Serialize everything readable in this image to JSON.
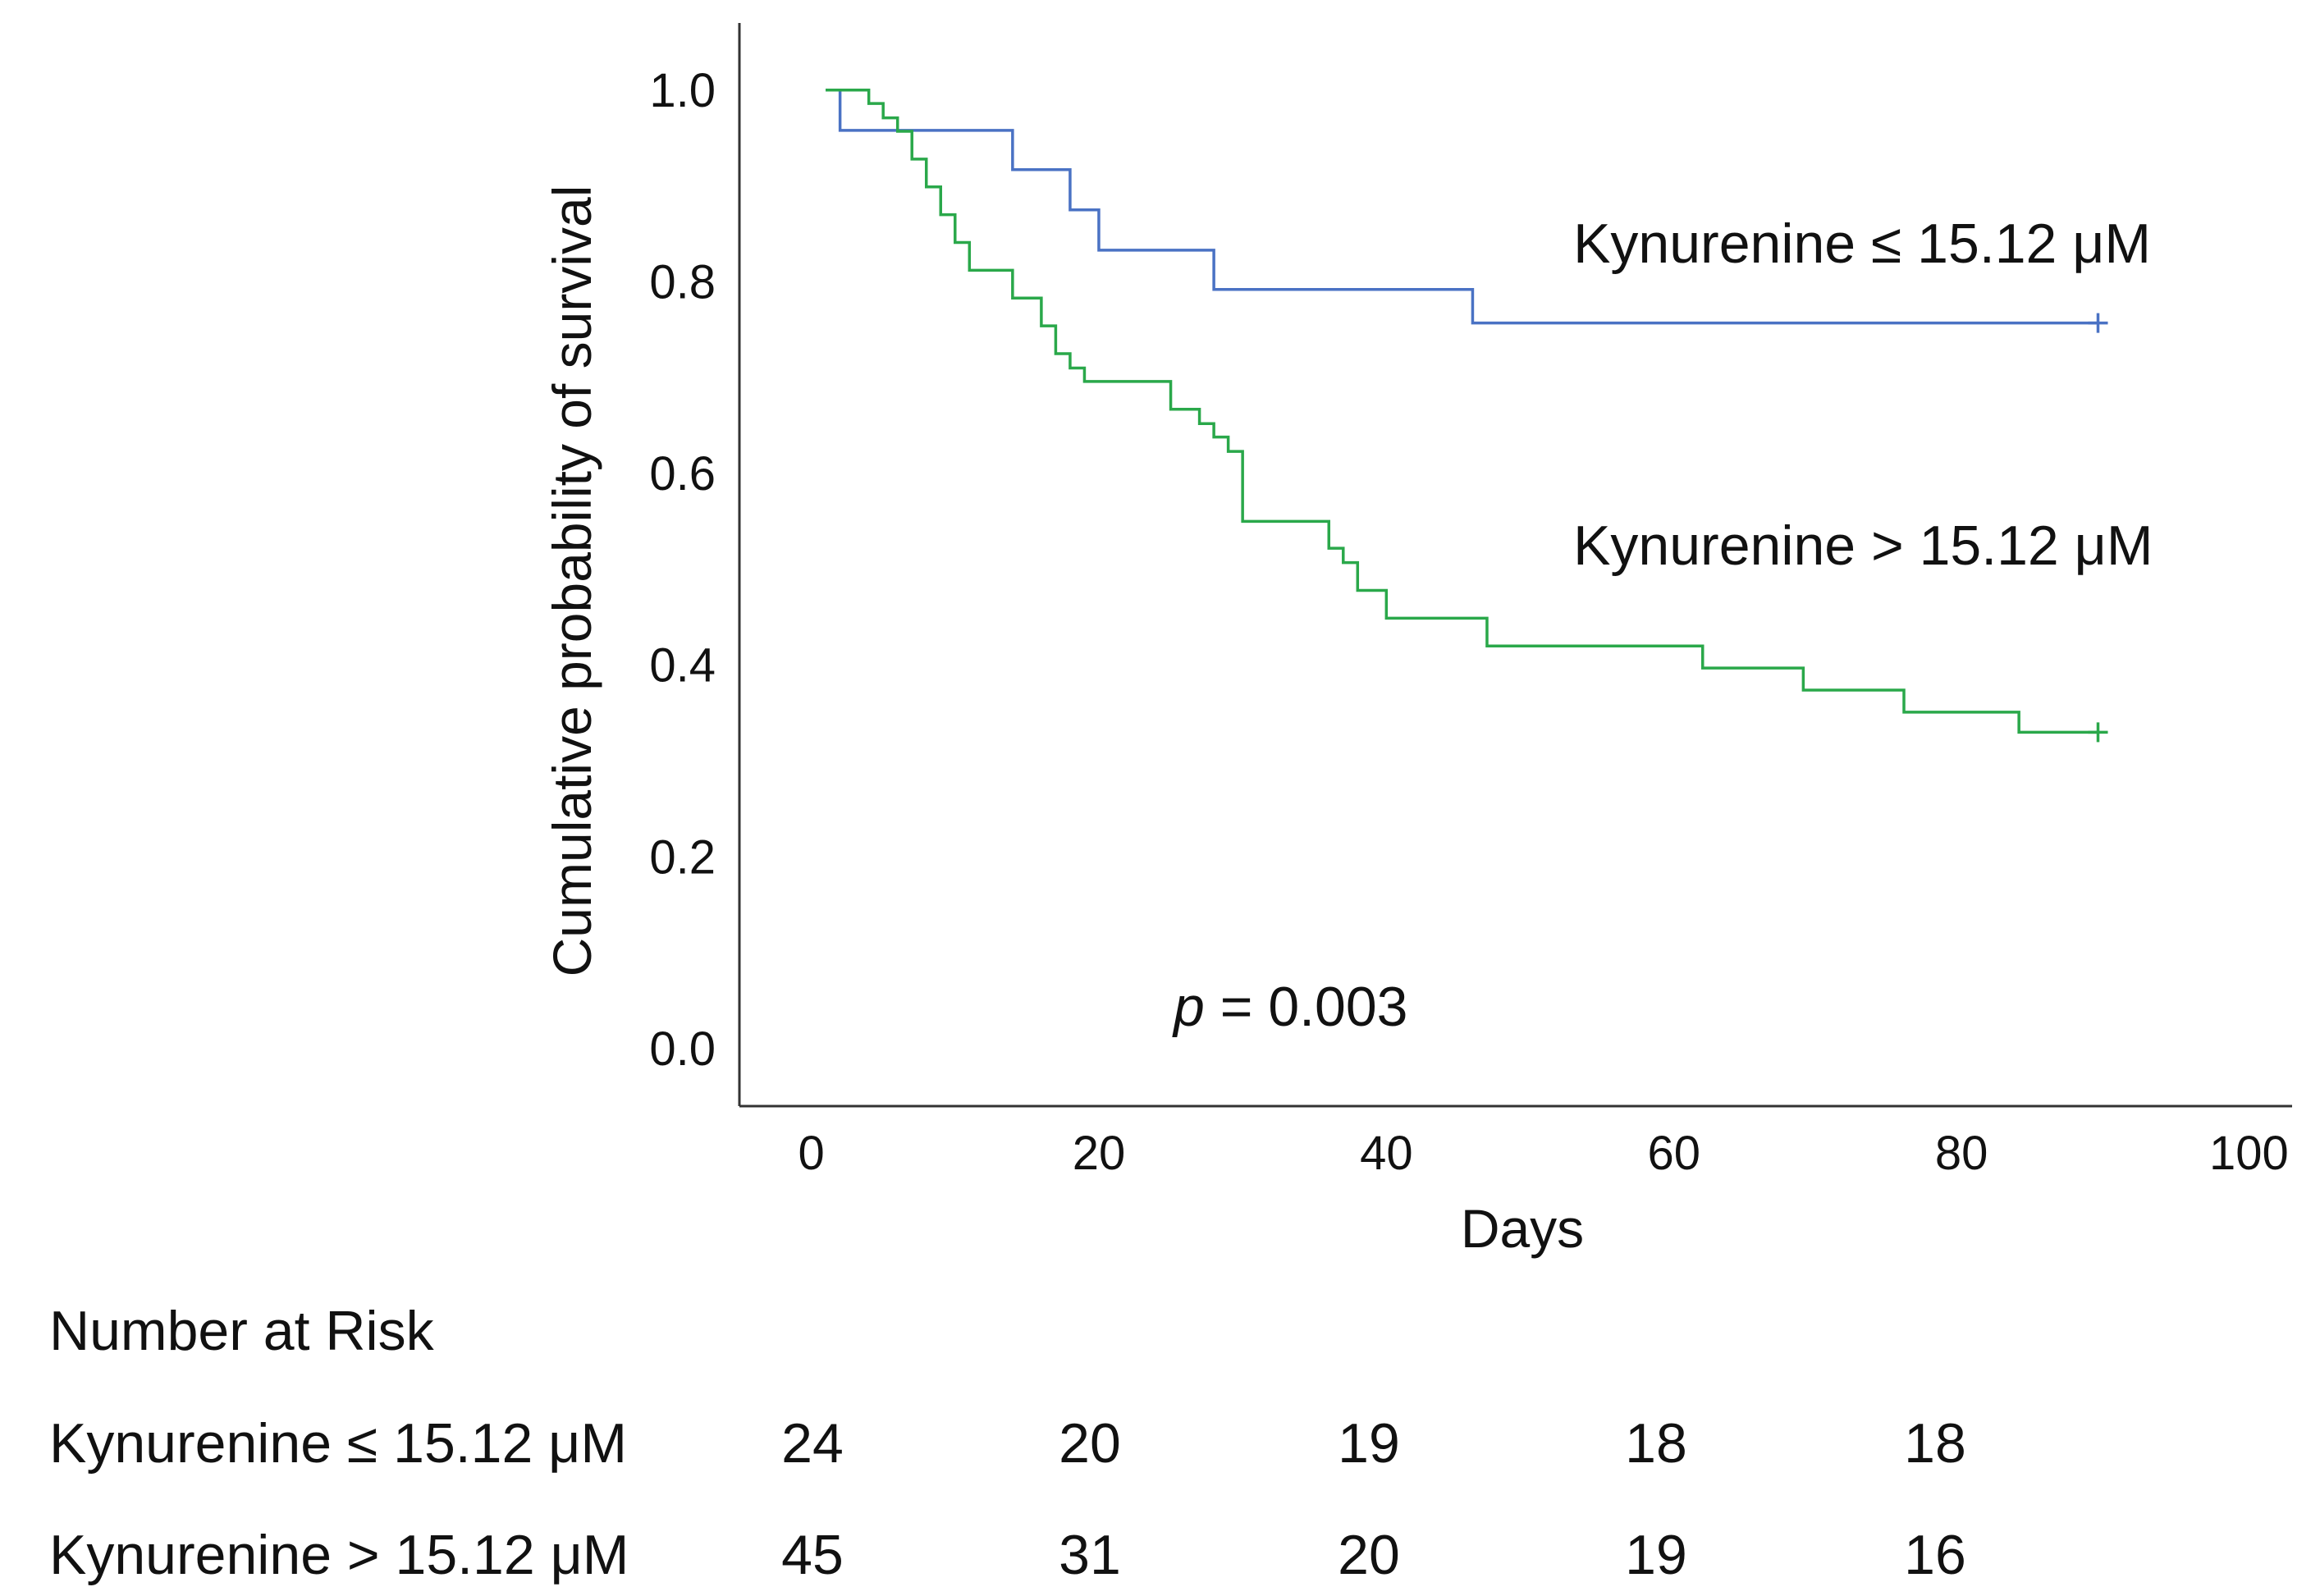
{
  "chart_data": {
    "type": "line",
    "subtype": "kaplan-meier step",
    "title": "",
    "xlabel": "Days",
    "ylabel": "Cumulative probability of survival",
    "xlim": [
      -5,
      103
    ],
    "ylim": [
      -0.06,
      1.07
    ],
    "xticks": [
      0,
      20,
      40,
      60,
      80,
      100
    ],
    "xtick_labels": [
      "0",
      "20",
      "40",
      "60",
      "80",
      "100"
    ],
    "yticks": [
      0.0,
      0.2,
      0.4,
      0.6,
      0.8,
      1.0
    ],
    "ytick_labels": [
      "0.0",
      "0.2",
      "0.4",
      "0.6",
      "0.8",
      "1.0"
    ],
    "grid": false,
    "annotation": {
      "p_symbol": "p",
      "p_rest": " = 0.003"
    },
    "series": [
      {
        "name": "Kynurenine ≤ 15.12 μM",
        "color": "#4a72c4",
        "label_anchor": {
          "x": 53,
          "y": 0.82
        },
        "censor": {
          "x": 89.5,
          "y": 0.757
        },
        "steps": [
          [
            1,
            1.0
          ],
          [
            2,
            0.958
          ],
          [
            14,
            0.917
          ],
          [
            18,
            0.875
          ],
          [
            20,
            0.833
          ],
          [
            28,
            0.792
          ],
          [
            46,
            0.757
          ],
          [
            89.5,
            0.757
          ]
        ]
      },
      {
        "name": "Kynurenine > 15.12 μM",
        "color": "#2aa84a",
        "label_anchor": {
          "x": 53,
          "y": 0.505
        },
        "censor": {
          "x": 89.5,
          "y": 0.33
        },
        "steps": [
          [
            1,
            1.0
          ],
          [
            4,
            0.986
          ],
          [
            5,
            0.971
          ],
          [
            6,
            0.957
          ],
          [
            7,
            0.928
          ],
          [
            8,
            0.899
          ],
          [
            9,
            0.87
          ],
          [
            10,
            0.841
          ],
          [
            11,
            0.812
          ],
          [
            14,
            0.783
          ],
          [
            16,
            0.754
          ],
          [
            17,
            0.725
          ],
          [
            18,
            0.71
          ],
          [
            19,
            0.696
          ],
          [
            25,
            0.667
          ],
          [
            27,
            0.652
          ],
          [
            28,
            0.638
          ],
          [
            29,
            0.623
          ],
          [
            30,
            0.55
          ],
          [
            36,
            0.522
          ],
          [
            37,
            0.507
          ],
          [
            38,
            0.478
          ],
          [
            40,
            0.449
          ],
          [
            47,
            0.42
          ],
          [
            62,
            0.397
          ],
          [
            69,
            0.374
          ],
          [
            76,
            0.351
          ],
          [
            84,
            0.33
          ],
          [
            89.5,
            0.33
          ]
        ]
      }
    ]
  },
  "risk_table": {
    "title": "Number at Risk",
    "rows": [
      {
        "label": "Kynurenine ≤ 15.12 μM",
        "values": [
          "24",
          "20",
          "19",
          "18",
          "18"
        ]
      },
      {
        "label": "Kynurenine > 15.12 μM",
        "values": [
          "45",
          "31",
          "20",
          "19",
          "16"
        ]
      }
    ]
  }
}
